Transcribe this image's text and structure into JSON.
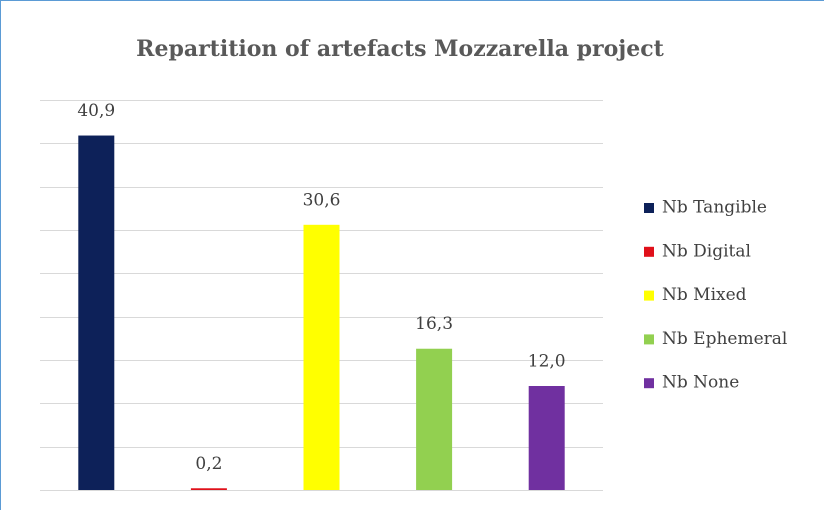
{
  "chart_data": {
    "type": "bar",
    "title": "Repartition of artefacts Mozzarella project",
    "series": [
      {
        "name": "Nb Tangible",
        "color": "#0d2159",
        "values": [
          40.9
        ],
        "value_labels": [
          "40,9"
        ]
      },
      {
        "name": "Nb Digital",
        "color": "#e0101a",
        "values": [
          0.2
        ],
        "value_labels": [
          "0,2"
        ]
      },
      {
        "name": "Nb Mixed",
        "color": "#ffff00",
        "values": [
          30.6
        ],
        "value_labels": [
          "30,6"
        ]
      },
      {
        "name": "Nb Ephemeral",
        "color": "#92d050",
        "values": [
          16.3
        ],
        "value_labels": [
          "16,3"
        ]
      },
      {
        "name": "Nb None",
        "color": "#7030a0",
        "values": [
          12.0
        ],
        "value_labels": [
          "12,0"
        ]
      }
    ],
    "ylim": [
      0,
      45
    ],
    "yticks": [
      0,
      5,
      10,
      15,
      20,
      25,
      30,
      35,
      40,
      45
    ],
    "grid": true,
    "legend": "right"
  }
}
